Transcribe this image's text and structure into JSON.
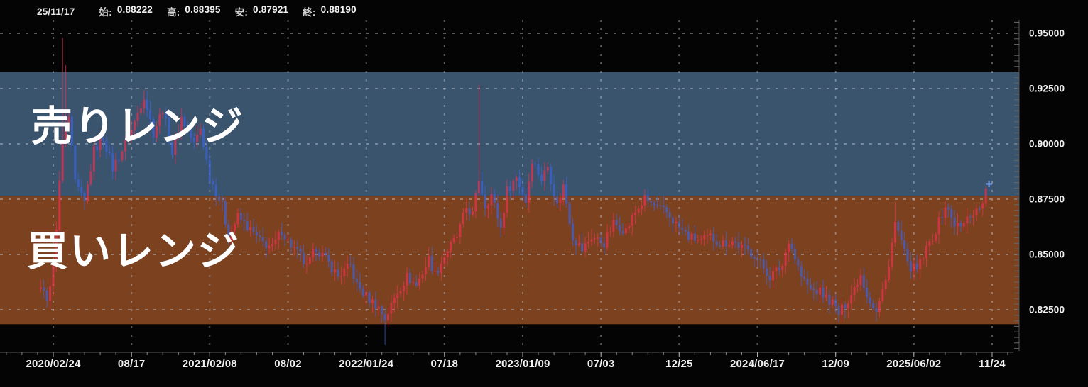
{
  "info_bar": {
    "date": "25/11/17",
    "fields": [
      {
        "label": "始:",
        "value": "0.88222"
      },
      {
        "label": "高:",
        "value": "0.88395"
      },
      {
        "label": "安:",
        "value": "0.87921"
      },
      {
        "label": "終:",
        "value": "0.88190"
      }
    ]
  },
  "zones": {
    "sell": {
      "label": "売りレンジ",
      "top_price": 0.9325,
      "bottom_price": 0.8765,
      "fill": "#3a546e"
    },
    "buy": {
      "label": "買いレンジ",
      "top_price": 0.8765,
      "bottom_price": 0.8185,
      "fill": "#7c4220"
    }
  },
  "chart_data": {
    "type": "candlestick",
    "x_unit": "week",
    "ylim": [
      0.8057,
      0.9561
    ],
    "grid": true,
    "y_ticks": [
      0.95,
      0.925,
      0.9,
      0.875,
      0.85,
      0.825
    ],
    "y_tick_decimals": 5,
    "x_ticks": [
      {
        "label": "2020/02/24",
        "week": 0
      },
      {
        "label": "08/17",
        "week": 25
      },
      {
        "label": "2021/02/08",
        "week": 50
      },
      {
        "label": "08/02",
        "week": 75
      },
      {
        "label": "2022/01/24",
        "week": 100
      },
      {
        "label": "07/18",
        "week": 125
      },
      {
        "label": "2023/01/09",
        "week": 150
      },
      {
        "label": "07/03",
        "week": 175
      },
      {
        "label": "12/25",
        "week": 200
      },
      {
        "label": "2024/06/17",
        "week": 225
      },
      {
        "label": "12/09",
        "week": 250
      },
      {
        "label": "2025/06/02",
        "week": 275
      },
      {
        "label": "11/24",
        "week": 300
      }
    ],
    "week_range": [
      -4,
      299
    ],
    "anchors": [
      [
        -4,
        0.836
      ],
      [
        -2,
        0.828
      ],
      [
        0,
        0.845
      ],
      [
        1,
        0.863
      ],
      [
        2,
        0.882
      ],
      [
        3,
        0.9
      ],
      [
        5,
        0.912
      ],
      [
        7,
        0.882
      ],
      [
        10,
        0.873
      ],
      [
        13,
        0.897
      ],
      [
        16,
        0.903
      ],
      [
        19,
        0.889
      ],
      [
        22,
        0.897
      ],
      [
        25,
        0.906
      ],
      [
        29,
        0.922
      ],
      [
        32,
        0.905
      ],
      [
        35,
        0.916
      ],
      [
        38,
        0.896
      ],
      [
        41,
        0.912
      ],
      [
        45,
        0.9
      ],
      [
        47,
        0.907
      ],
      [
        50,
        0.885
      ],
      [
        54,
        0.872
      ],
      [
        56,
        0.858
      ],
      [
        59,
        0.867
      ],
      [
        63,
        0.861
      ],
      [
        66,
        0.856
      ],
      [
        70,
        0.853
      ],
      [
        73,
        0.861
      ],
      [
        75,
        0.856
      ],
      [
        79,
        0.849
      ],
      [
        81,
        0.844
      ],
      [
        84,
        0.853
      ],
      [
        88,
        0.846
      ],
      [
        91,
        0.84
      ],
      [
        95,
        0.845
      ],
      [
        97,
        0.836
      ],
      [
        100,
        0.831
      ],
      [
        104,
        0.826
      ],
      [
        106,
        0.821
      ],
      [
        110,
        0.833
      ],
      [
        113,
        0.84
      ],
      [
        116,
        0.836
      ],
      [
        120,
        0.848
      ],
      [
        122,
        0.841
      ],
      [
        126,
        0.852
      ],
      [
        129,
        0.858
      ],
      [
        132,
        0.871
      ],
      [
        134,
        0.868
      ],
      [
        136,
        0.884
      ],
      [
        138,
        0.872
      ],
      [
        140,
        0.877
      ],
      [
        143,
        0.862
      ],
      [
        145,
        0.879
      ],
      [
        148,
        0.885
      ],
      [
        151,
        0.874
      ],
      [
        153,
        0.893
      ],
      [
        156,
        0.884
      ],
      [
        158,
        0.89
      ],
      [
        161,
        0.872
      ],
      [
        163,
        0.881
      ],
      [
        166,
        0.858
      ],
      [
        169,
        0.852
      ],
      [
        172,
        0.858
      ],
      [
        176,
        0.855
      ],
      [
        179,
        0.864
      ],
      [
        183,
        0.861
      ],
      [
        186,
        0.869
      ],
      [
        189,
        0.875
      ],
      [
        193,
        0.871
      ],
      [
        196,
        0.869
      ],
      [
        200,
        0.862
      ],
      [
        203,
        0.858
      ],
      [
        207,
        0.856
      ],
      [
        210,
        0.858
      ],
      [
        213,
        0.855
      ],
      [
        217,
        0.856
      ],
      [
        220,
        0.853
      ],
      [
        224,
        0.85
      ],
      [
        226,
        0.846
      ],
      [
        229,
        0.84
      ],
      [
        233,
        0.845
      ],
      [
        235,
        0.857
      ],
      [
        239,
        0.84
      ],
      [
        242,
        0.834
      ],
      [
        245,
        0.833
      ],
      [
        249,
        0.828
      ],
      [
        251,
        0.823
      ],
      [
        255,
        0.832
      ],
      [
        258,
        0.841
      ],
      [
        260,
        0.832
      ],
      [
        263,
        0.824
      ],
      [
        266,
        0.838
      ],
      [
        269,
        0.864
      ],
      [
        271,
        0.856
      ],
      [
        273,
        0.845
      ],
      [
        276,
        0.843
      ],
      [
        279,
        0.852
      ],
      [
        282,
        0.861
      ],
      [
        285,
        0.872
      ],
      [
        288,
        0.864
      ],
      [
        290,
        0.862
      ],
      [
        293,
        0.868
      ],
      [
        296,
        0.871
      ],
      [
        299,
        0.8819
      ]
    ],
    "spikes": [
      {
        "week": 3,
        "high": 0.948
      },
      {
        "week": 4,
        "high": 0.9355
      },
      {
        "week": 106,
        "low": 0.809
      },
      {
        "week": 136,
        "high": 0.9268
      },
      {
        "week": 269,
        "high": 0.8738
      }
    ],
    "last_candle": {
      "date": "25/11/17",
      "open": 0.88222,
      "high": 0.88395,
      "low": 0.87921,
      "close": 0.8819
    },
    "colors": {
      "up": "#ee3050",
      "down": "#3a64e0",
      "grid": "rgba(210,215,225,0.40)",
      "axis": "#555555",
      "marker": "#7ea6f0"
    }
  }
}
